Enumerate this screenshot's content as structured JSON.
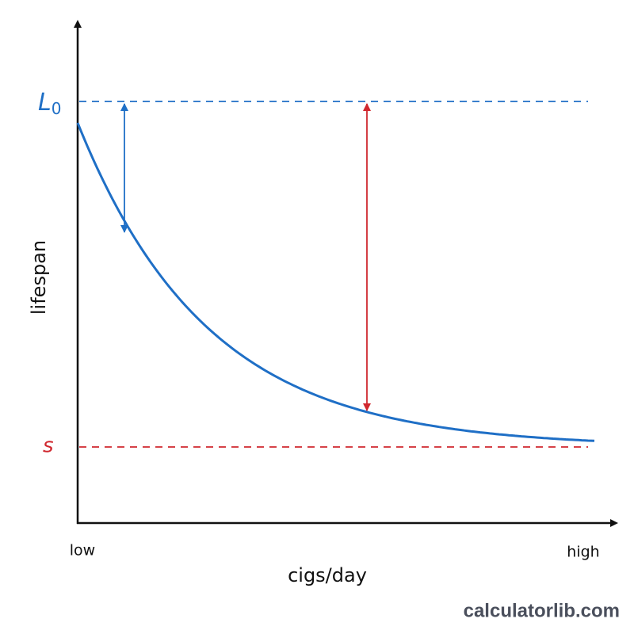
{
  "axes": {
    "y_label": "lifespan",
    "x_label": "cigs/day",
    "x_low": "low",
    "x_high": "high"
  },
  "levels": {
    "top": {
      "label": "L",
      "subscript": "0"
    },
    "bottom": {
      "label": "s"
    }
  },
  "watermark": "calculatorlib.com"
}
